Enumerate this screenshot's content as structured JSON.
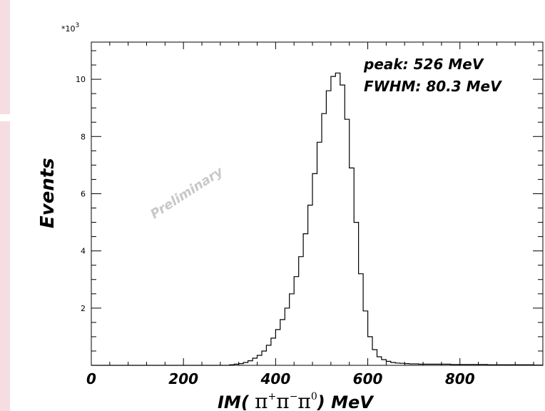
{
  "chart_data": {
    "type": "histogram",
    "xlabel": {
      "prefix": "IM( ",
      "symbol": "π",
      "sup1": "+",
      "sup2": "−",
      "sup3": "0",
      "suffix": ") MeV"
    },
    "ylabel": "Events",
    "y_multiplier": "*10",
    "y_multiplier_exp": "3",
    "xlim": [
      0,
      980
    ],
    "ylim": [
      0,
      11.3
    ],
    "x_ticks": [
      0,
      200,
      400,
      600,
      800
    ],
    "x_tick_labels": [
      "0",
      "200",
      "400",
      "600",
      "800"
    ],
    "y_ticks": [
      2,
      4,
      6,
      8,
      10
    ],
    "y_tick_labels": [
      "2",
      "4",
      "6",
      "8",
      "10"
    ],
    "bin_width": 10,
    "annotations": {
      "peak": "peak: 526 MeV",
      "fwhm": "FWHM: 80.3 MeV",
      "watermark": "Preliminary"
    },
    "bins": [
      [
        0,
        0
      ],
      [
        10,
        0
      ],
      [
        20,
        0
      ],
      [
        30,
        0
      ],
      [
        40,
        0
      ],
      [
        50,
        0
      ],
      [
        60,
        0
      ],
      [
        70,
        0
      ],
      [
        80,
        0
      ],
      [
        90,
        0
      ],
      [
        100,
        0
      ],
      [
        110,
        0
      ],
      [
        120,
        0
      ],
      [
        130,
        0
      ],
      [
        140,
        0
      ],
      [
        150,
        0
      ],
      [
        160,
        0
      ],
      [
        170,
        0
      ],
      [
        180,
        0
      ],
      [
        190,
        0
      ],
      [
        200,
        0
      ],
      [
        210,
        0
      ],
      [
        220,
        0
      ],
      [
        230,
        0
      ],
      [
        240,
        0
      ],
      [
        250,
        0
      ],
      [
        260,
        0
      ],
      [
        270,
        0
      ],
      [
        280,
        0
      ],
      [
        290,
        0
      ],
      [
        300,
        0.02
      ],
      [
        310,
        0.04
      ],
      [
        320,
        0.06
      ],
      [
        330,
        0.1
      ],
      [
        340,
        0.16
      ],
      [
        350,
        0.25
      ],
      [
        360,
        0.35
      ],
      [
        370,
        0.5
      ],
      [
        380,
        0.7
      ],
      [
        390,
        0.95
      ],
      [
        400,
        1.25
      ],
      [
        410,
        1.6
      ],
      [
        420,
        2.0
      ],
      [
        430,
        2.5
      ],
      [
        440,
        3.1
      ],
      [
        450,
        3.8
      ],
      [
        460,
        4.6
      ],
      [
        470,
        5.6
      ],
      [
        480,
        6.7
      ],
      [
        490,
        7.8
      ],
      [
        500,
        8.8
      ],
      [
        510,
        9.6
      ],
      [
        520,
        10.1
      ],
      [
        530,
        10.22
      ],
      [
        540,
        9.8
      ],
      [
        550,
        8.6
      ],
      [
        560,
        6.9
      ],
      [
        570,
        5.0
      ],
      [
        580,
        3.2
      ],
      [
        590,
        1.9
      ],
      [
        600,
        1.0
      ],
      [
        610,
        0.55
      ],
      [
        620,
        0.3
      ],
      [
        630,
        0.2
      ],
      [
        640,
        0.14
      ],
      [
        650,
        0.1
      ],
      [
        660,
        0.08
      ],
      [
        670,
        0.07
      ],
      [
        680,
        0.06
      ],
      [
        690,
        0.05
      ],
      [
        700,
        0.05
      ],
      [
        710,
        0.04
      ],
      [
        720,
        0.04
      ],
      [
        730,
        0.04
      ],
      [
        740,
        0.04
      ],
      [
        750,
        0.04
      ],
      [
        760,
        0.04
      ],
      [
        770,
        0.04
      ],
      [
        780,
        0.03
      ],
      [
        790,
        0.03
      ],
      [
        800,
        0.03
      ],
      [
        810,
        0.03
      ],
      [
        820,
        0.03
      ],
      [
        830,
        0.03
      ],
      [
        840,
        0.03
      ],
      [
        850,
        0.03
      ],
      [
        860,
        0.02
      ],
      [
        870,
        0.02
      ],
      [
        880,
        0.02
      ],
      [
        890,
        0.02
      ],
      [
        900,
        0.02
      ],
      [
        910,
        0.02
      ],
      [
        920,
        0.02
      ],
      [
        930,
        0.02
      ],
      [
        940,
        0.02
      ],
      [
        950,
        0.02
      ],
      [
        960,
        0.01
      ],
      [
        970,
        0.01
      ]
    ]
  }
}
